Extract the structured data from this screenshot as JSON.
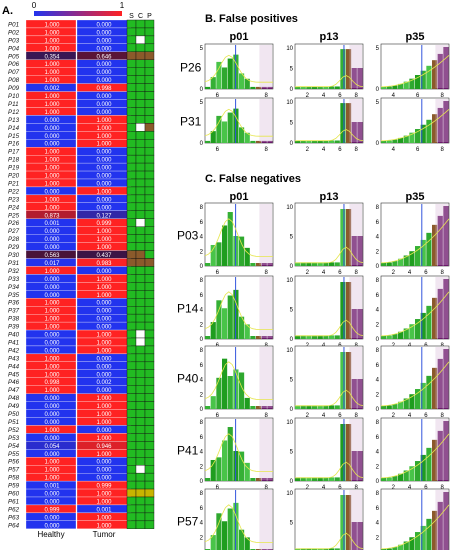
{
  "figure": {
    "panel_a_label": "A.",
    "panel_b_label": "B. False positives",
    "panel_c_label": "C. False negatives"
  },
  "chart_data": [
    {
      "type": "heatmap",
      "panel": "A",
      "colorbar": {
        "min_label": "0",
        "max_label": "1",
        "colors": [
          "#2233ee",
          "#ff2222"
        ]
      },
      "columns": [
        "Healthy",
        "Tumor"
      ],
      "indicator_columns": [
        "S",
        "C",
        "P"
      ],
      "rows": [
        "P01",
        "P02",
        "P03",
        "P04",
        "P05",
        "P06",
        "P07",
        "P08",
        "P09",
        "P10",
        "P11",
        "P12",
        "P13",
        "P14",
        "P15",
        "P16",
        "P17",
        "P18",
        "P19",
        "P20",
        "P21",
        "P22",
        "P23",
        "P24",
        "P25",
        "P26",
        "P27",
        "P28",
        "P29",
        "P30",
        "P31",
        "P32",
        "P33",
        "P34",
        "P35",
        "P36",
        "P37",
        "P38",
        "P39",
        "P40",
        "P41",
        "P42",
        "P43",
        "P44",
        "P45",
        "P46",
        "P47",
        "P48",
        "P49",
        "P50",
        "P51",
        "P52",
        "P53",
        "P54",
        "P55",
        "P56",
        "P57",
        "P58",
        "P59",
        "P60",
        "P61",
        "P62",
        "P63",
        "P64"
      ],
      "healthy": [
        1.0,
        1.0,
        1.0,
        1.0,
        0.354,
        1.0,
        1.0,
        1.0,
        0.002,
        1.0,
        1.0,
        1.0,
        0.0,
        0.0,
        0.0,
        0.0,
        1.0,
        1.0,
        1.0,
        1.0,
        1.0,
        0.0,
        1.0,
        1.0,
        0.873,
        0.001,
        0.0,
        0.0,
        0.0,
        0.563,
        0.017,
        1.0,
        0.0,
        0.0,
        0.0,
        1.0,
        1.0,
        1.0,
        1.0,
        0.0,
        0.0,
        0.0,
        1.0,
        1.0,
        1.0,
        0.998,
        1.0,
        0.0,
        0.0,
        0.0,
        0.0,
        1.0,
        0.0,
        0.054,
        0.0,
        1.0,
        1.0,
        1.0,
        0.001,
        0.0,
        0.0,
        0.999,
        0.0,
        0.0
      ],
      "tumor": [
        0.0,
        0.0,
        0.0,
        0.0,
        0.646,
        0.0,
        0.0,
        0.0,
        0.998,
        0.0,
        0.0,
        0.0,
        1.0,
        1.0,
        1.0,
        1.0,
        0.0,
        0.0,
        0.0,
        0.0,
        0.0,
        1.0,
        0.0,
        0.0,
        0.127,
        0.999,
        1.0,
        1.0,
        1.0,
        0.437,
        0.983,
        0.0,
        1.0,
        1.0,
        1.0,
        0.0,
        0.0,
        0.0,
        0.0,
        1.0,
        1.0,
        1.0,
        0.0,
        0.0,
        0.0,
        0.002,
        0.0,
        1.0,
        1.0,
        1.0,
        1.0,
        0.0,
        1.0,
        0.946,
        1.0,
        0.0,
        0.0,
        0.0,
        0.999,
        1.0,
        1.0,
        0.001,
        1.0,
        1.0
      ],
      "indicators": [
        [
          "G",
          "G",
          "G"
        ],
        [
          "G",
          "G",
          "G"
        ],
        [
          "G",
          "W",
          "G"
        ],
        [
          "G",
          "G",
          "G"
        ],
        [
          "R",
          "R",
          "R"
        ],
        [
          "G",
          "G",
          "G"
        ],
        [
          "G",
          "G",
          "G"
        ],
        [
          "G",
          "G",
          "G"
        ],
        [
          "G",
          "G",
          "G"
        ],
        [
          "G",
          "G",
          "G"
        ],
        [
          "G",
          "G",
          "G"
        ],
        [
          "G",
          "G",
          "G"
        ],
        [
          "G",
          "G",
          "G"
        ],
        [
          "G",
          "W",
          "R"
        ],
        [
          "G",
          "G",
          "G"
        ],
        [
          "G",
          "G",
          "G"
        ],
        [
          "G",
          "G",
          "G"
        ],
        [
          "G",
          "G",
          "G"
        ],
        [
          "G",
          "G",
          "G"
        ],
        [
          "G",
          "G",
          "G"
        ],
        [
          "G",
          "G",
          "G"
        ],
        [
          "G",
          "G",
          "G"
        ],
        [
          "G",
          "G",
          "G"
        ],
        [
          "G",
          "G",
          "G"
        ],
        [
          "G",
          "G",
          "G"
        ],
        [
          "G",
          "W",
          "G"
        ],
        [
          "G",
          "G",
          "G"
        ],
        [
          "G",
          "G",
          "G"
        ],
        [
          "G",
          "G",
          "G"
        ],
        [
          "R",
          "R",
          "G"
        ],
        [
          "R",
          "R",
          "R"
        ],
        [
          "G",
          "G",
          "G"
        ],
        [
          "G",
          "G",
          "G"
        ],
        [
          "G",
          "G",
          "G"
        ],
        [
          "G",
          "G",
          "G"
        ],
        [
          "G",
          "G",
          "G"
        ],
        [
          "G",
          "G",
          "G"
        ],
        [
          "G",
          "G",
          "G"
        ],
        [
          "G",
          "G",
          "G"
        ],
        [
          "G",
          "W",
          "G"
        ],
        [
          "G",
          "W",
          "G"
        ],
        [
          "G",
          "G",
          "G"
        ],
        [
          "G",
          "G",
          "G"
        ],
        [
          "G",
          "G",
          "G"
        ],
        [
          "G",
          "G",
          "G"
        ],
        [
          "G",
          "G",
          "G"
        ],
        [
          "G",
          "G",
          "G"
        ],
        [
          "G",
          "G",
          "G"
        ],
        [
          "G",
          "G",
          "G"
        ],
        [
          "G",
          "G",
          "G"
        ],
        [
          "G",
          "G",
          "G"
        ],
        [
          "G",
          "G",
          "G"
        ],
        [
          "G",
          "G",
          "G"
        ],
        [
          "G",
          "G",
          "G"
        ],
        [
          "G",
          "G",
          "G"
        ],
        [
          "G",
          "G",
          "G"
        ],
        [
          "G",
          "W",
          "G"
        ],
        [
          "G",
          "G",
          "G"
        ],
        [
          "G",
          "G",
          "G"
        ],
        [
          "Y",
          "Y",
          "Y"
        ],
        [
          "G",
          "G",
          "G"
        ],
        [
          "G",
          "G",
          "G"
        ],
        [
          "G",
          "G",
          "G"
        ],
        [
          "G",
          "G",
          "G"
        ]
      ],
      "indicator_colors": {
        "G": "#22bb22",
        "W": "#ffffff",
        "R": "#8b5a2b",
        "Y": "#c8b400"
      }
    },
    {
      "type": "bar",
      "panel": "B",
      "columns": [
        "p01",
        "p13",
        "p35"
      ],
      "rows": [
        {
          "label": "P26",
          "yticks": [
            [
              "0",
              "5"
            ],
            [
              "0",
              "5",
              "10"
            ],
            [
              "0",
              "5"
            ]
          ],
          "xticks": [
            [
              "6",
              "8"
            ],
            [
              "2",
              "4",
              "6",
              "8"
            ],
            [
              "4",
              "6",
              "8"
            ]
          ]
        },
        {
          "label": "P31",
          "yticks": [
            [
              "0",
              "5"
            ],
            [
              "0",
              "5",
              "10"
            ],
            [
              "0",
              "5"
            ]
          ],
          "xticks": [
            [
              "6",
              "8"
            ],
            [
              "2",
              "4",
              "6",
              "8"
            ],
            [
              "4",
              "6",
              "8"
            ]
          ]
        }
      ]
    },
    {
      "type": "bar",
      "panel": "C",
      "columns": [
        "p01",
        "p13",
        "p35"
      ],
      "rows": [
        {
          "label": "P03",
          "yticks": [
            [
              "0",
              "2",
              "4",
              "6",
              "8"
            ],
            [
              "0",
              "5",
              "10"
            ],
            [
              "0",
              "2",
              "4",
              "6",
              "8"
            ]
          ],
          "xticks": [
            [
              "6",
              "8"
            ],
            [
              "2",
              "4",
              "6",
              "8"
            ],
            [
              "2",
              "4",
              "6",
              "8"
            ]
          ]
        },
        {
          "label": "P14",
          "yticks": [
            [
              "0",
              "2",
              "4",
              "6",
              "8"
            ],
            [
              "0",
              "5",
              "10"
            ],
            [
              "0",
              "2",
              "4",
              "6",
              "8"
            ]
          ],
          "xticks": [
            [
              "6",
              "8"
            ],
            [
              "2",
              "4",
              "6",
              "8"
            ],
            [
              "2",
              "4",
              "6",
              "8"
            ]
          ]
        },
        {
          "label": "P40",
          "yticks": [
            [
              "0",
              "2",
              "4",
              "6",
              "8"
            ],
            [
              "0",
              "5",
              "10"
            ],
            [
              "0",
              "2",
              "4",
              "6",
              "8"
            ]
          ],
          "xticks": [
            [
              "6",
              "8"
            ],
            [
              "2",
              "4",
              "6",
              "8"
            ],
            [
              "2",
              "4",
              "6",
              "8"
            ]
          ]
        },
        {
          "label": "P41",
          "yticks": [
            [
              "0",
              "2",
              "4",
              "6",
              "8"
            ],
            [
              "0",
              "5",
              "10"
            ],
            [
              "0",
              "2",
              "4",
              "6",
              "8"
            ]
          ],
          "xticks": [
            [
              "6",
              "8"
            ],
            [
              "2",
              "4",
              "6",
              "8"
            ],
            [
              "2",
              "4",
              "6",
              "8"
            ]
          ]
        },
        {
          "label": "P57",
          "yticks": [
            [
              "0",
              "2",
              "4",
              "6",
              "8"
            ],
            [
              "0",
              "5",
              "10"
            ],
            [
              "0",
              "2",
              "4",
              "6",
              "8"
            ]
          ],
          "xticks": [
            [
              "6",
              "8"
            ],
            [
              "2",
              "4",
              "6",
              "8"
            ],
            [
              "2",
              "4",
              "6",
              "8"
            ]
          ]
        }
      ]
    }
  ]
}
